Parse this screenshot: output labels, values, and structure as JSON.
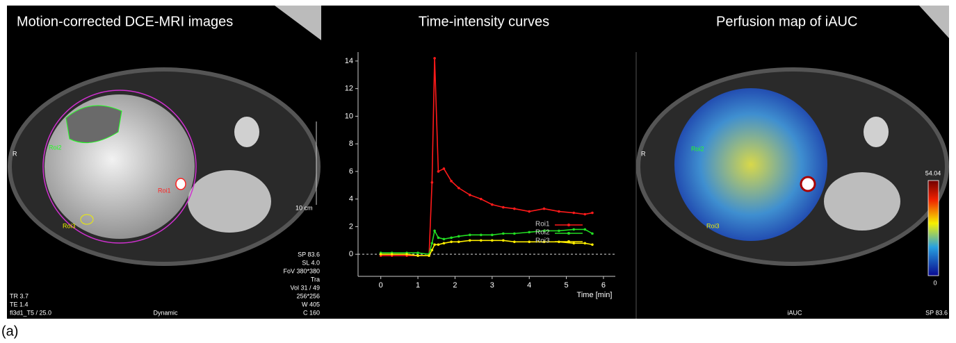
{
  "left_panel": {
    "title": "Motion-corrected DCE-MRI images",
    "orientation": "R",
    "roi_labels": [
      "Roi2",
      "Roi1",
      "Roi3"
    ],
    "scale_label": "10 cm",
    "info_left": [
      "TR 3.7",
      "TE 1.4",
      "fl3d1_T5 / 25.0"
    ],
    "info_center": "Dynamic",
    "info_right": [
      "SP 83.6",
      "SL 4.0",
      "FoV 380*380",
      "Tra",
      "Vol 31 / 49",
      "256*256",
      "W 405",
      "C 160"
    ]
  },
  "chart_data": {
    "type": "line",
    "title": "Time-intensity curves",
    "x_label": "Time [min]",
    "x": [
      0,
      0.3,
      0.7,
      1.0,
      1.3,
      1.38,
      1.45,
      1.55,
      1.7,
      1.9,
      2.1,
      2.4,
      2.7,
      3.0,
      3.3,
      3.6,
      4.0,
      4.4,
      4.8,
      5.2,
      5.5,
      5.7
    ],
    "series": [
      {
        "name": "Roi1",
        "color": "#ff1a1a",
        "values": [
          -0.1,
          -0.1,
          -0.1,
          -0.1,
          -0.1,
          5.2,
          14.2,
          6.0,
          6.2,
          5.3,
          4.8,
          4.3,
          4.0,
          3.6,
          3.4,
          3.3,
          3.1,
          3.3,
          3.1,
          3.0,
          2.9,
          3.0
        ]
      },
      {
        "name": "Roi2",
        "color": "#22dd22",
        "values": [
          0.1,
          0.1,
          0.1,
          0.1,
          0.0,
          0.8,
          1.7,
          1.2,
          1.1,
          1.2,
          1.3,
          1.4,
          1.4,
          1.4,
          1.5,
          1.5,
          1.6,
          1.7,
          1.7,
          1.8,
          1.8,
          1.5
        ]
      },
      {
        "name": "Roi3",
        "color": "#ffee00",
        "values": [
          0.0,
          0.0,
          0.0,
          -0.1,
          -0.1,
          0.3,
          0.7,
          0.7,
          0.8,
          0.9,
          0.9,
          1.0,
          1.0,
          1.0,
          1.0,
          0.9,
          0.9,
          0.9,
          0.9,
          0.8,
          0.8,
          0.7
        ]
      }
    ],
    "xlim": [
      -0.5,
      6.6
    ],
    "ylim": [
      -1.5,
      15
    ],
    "xticks": [
      0,
      1,
      2,
      3,
      4,
      5,
      6
    ],
    "yticks": [
      0,
      2,
      4,
      6,
      8,
      10,
      12,
      14
    ],
    "zero_line": true,
    "legend": "right"
  },
  "right_panel": {
    "title": "Perfusion map of iAUC",
    "orientation": "R",
    "roi_labels": [
      "Roi2",
      "Roi3"
    ],
    "colorbar": {
      "max": 54.04,
      "min": 0
    },
    "map_label": "iAUC",
    "info_right": "SP 83.6"
  },
  "caption": "(a)"
}
